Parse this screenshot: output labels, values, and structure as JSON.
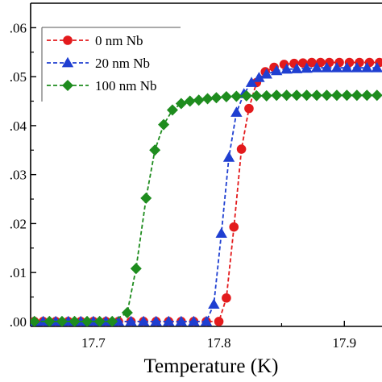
{
  "chart_data": {
    "type": "line",
    "title": "",
    "xlabel": "Temperature (K)",
    "ylabel": "",
    "xlim": [
      17.65,
      17.93
    ],
    "ylim": [
      -0.001,
      0.065
    ],
    "x_ticks": [
      17.7,
      17.8,
      17.9
    ],
    "x_tick_labels": [
      "17.7",
      "17.8",
      "17.9"
    ],
    "y_ticks": [
      0.0,
      0.01,
      0.02,
      0.03,
      0.04,
      0.05,
      0.06
    ],
    "y_tick_labels": [
      ".00",
      ".01",
      ".02",
      ".03",
      ".04",
      ".05",
      ".06"
    ],
    "grid": false,
    "legend_position": "top-left",
    "series": [
      {
        "name": "0 nm Nb",
        "color": "#e31a1c",
        "marker": "circle",
        "x": [
          17.653,
          17.66,
          17.67,
          17.68,
          17.69,
          17.7,
          17.71,
          17.72,
          17.73,
          17.74,
          17.75,
          17.76,
          17.77,
          17.78,
          17.79,
          17.8,
          17.806,
          17.812,
          17.818,
          17.824,
          17.83,
          17.837,
          17.844,
          17.852,
          17.86,
          17.867,
          17.874,
          17.881,
          17.888,
          17.896,
          17.904,
          17.912,
          17.92,
          17.928
        ],
        "y": [
          0.0,
          0.0,
          0.0,
          0.0,
          0.0,
          0.0,
          0.0,
          0.0,
          0.0,
          0.0,
          0.0,
          0.0,
          0.0,
          0.0,
          0.0,
          0.0,
          0.0048,
          0.0193,
          0.0352,
          0.0435,
          0.0488,
          0.051,
          0.0519,
          0.0525,
          0.0527,
          0.0528,
          0.0529,
          0.0529,
          0.0529,
          0.0529,
          0.0529,
          0.0529,
          0.0529,
          0.0529
        ]
      },
      {
        "name": "20 nm Nb",
        "color": "#1f3fd1",
        "marker": "triangle",
        "x": [
          17.653,
          17.66,
          17.67,
          17.68,
          17.69,
          17.7,
          17.71,
          17.72,
          17.73,
          17.74,
          17.75,
          17.76,
          17.77,
          17.78,
          17.79,
          17.796,
          17.802,
          17.808,
          17.814,
          17.82,
          17.826,
          17.832,
          17.838,
          17.846,
          17.854,
          17.862,
          17.87,
          17.878,
          17.886,
          17.894,
          17.902,
          17.91,
          17.918,
          17.926
        ],
        "y": [
          0.0,
          0.0,
          0.0,
          0.0,
          0.0,
          0.0,
          0.0,
          0.0,
          0.0,
          0.0,
          0.0,
          0.0,
          0.0,
          0.0,
          0.0,
          0.0035,
          0.018,
          0.0335,
          0.0427,
          0.0465,
          0.0488,
          0.0498,
          0.0505,
          0.0512,
          0.0515,
          0.0516,
          0.0517,
          0.0518,
          0.0518,
          0.0518,
          0.0518,
          0.0518,
          0.0518,
          0.0518
        ]
      },
      {
        "name": "100 nm Nb",
        "color": "#1e8c1e",
        "marker": "diamond",
        "x": [
          17.653,
          17.665,
          17.675,
          17.685,
          17.695,
          17.705,
          17.715,
          17.727,
          17.734,
          17.742,
          17.749,
          17.756,
          17.763,
          17.77,
          17.777,
          17.784,
          17.791,
          17.798,
          17.806,
          17.814,
          17.822,
          17.83,
          17.838,
          17.846,
          17.854,
          17.862,
          17.87,
          17.878,
          17.886,
          17.894,
          17.902,
          17.91,
          17.918,
          17.926
        ],
        "y": [
          0.0,
          0.0,
          0.0,
          0.0,
          0.0,
          0.0,
          0.0,
          0.0018,
          0.0108,
          0.0252,
          0.035,
          0.0402,
          0.0432,
          0.0445,
          0.045,
          0.0452,
          0.0455,
          0.0457,
          0.0459,
          0.046,
          0.0461,
          0.0461,
          0.0461,
          0.0462,
          0.0462,
          0.0462,
          0.0462,
          0.0462,
          0.0462,
          0.0462,
          0.0462,
          0.0462,
          0.0462,
          0.0462
        ]
      }
    ]
  }
}
